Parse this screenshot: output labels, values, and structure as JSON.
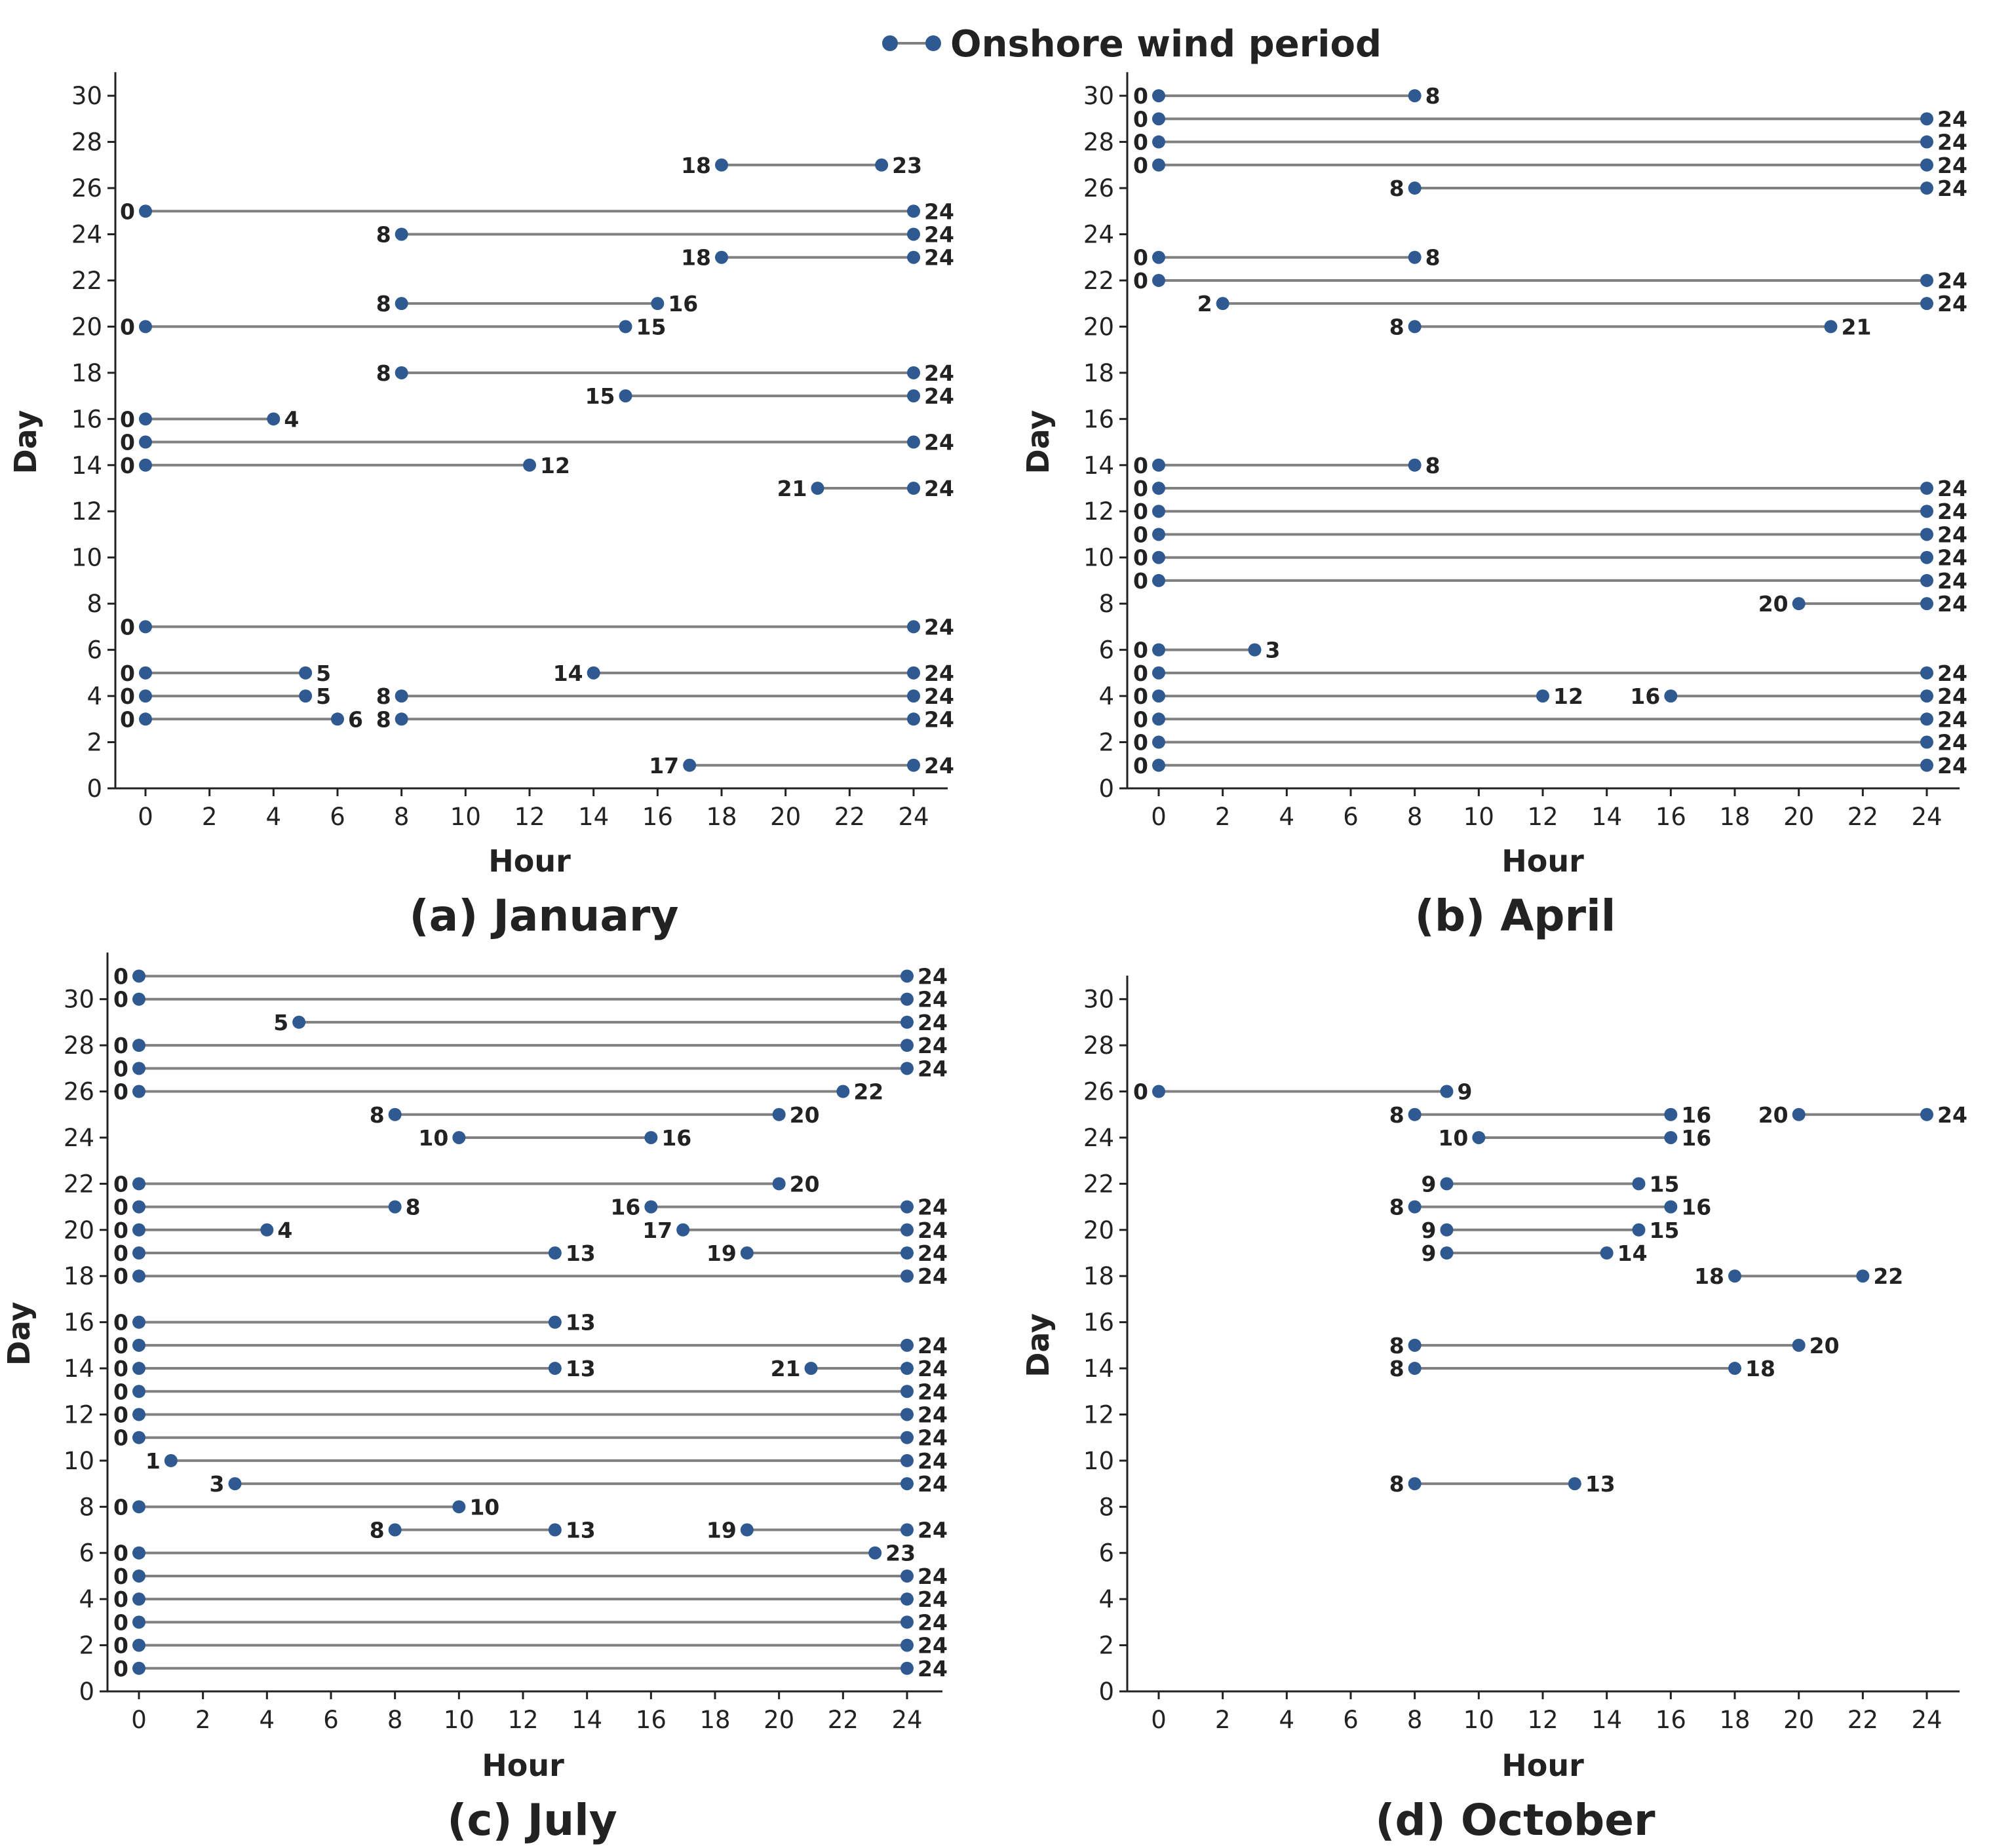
{
  "colors": {
    "marker": "#2E5A91",
    "line": "#808080",
    "axis": "#222222"
  },
  "legend": {
    "label": "Onshore wind period"
  },
  "chart_data": [
    {
      "type": "dumbbell",
      "title": "(a) January",
      "xlabel": "Hour",
      "ylabel": "Day",
      "xlim": [
        0,
        24
      ],
      "ylim": [
        0,
        30
      ],
      "xticks": [
        0,
        2,
        4,
        6,
        8,
        10,
        12,
        14,
        16,
        18,
        20,
        22,
        24
      ],
      "yticks": [
        0,
        2,
        4,
        6,
        8,
        10,
        12,
        14,
        16,
        18,
        20,
        22,
        24,
        26,
        28,
        30
      ],
      "periods": [
        {
          "day": 27,
          "start": 18,
          "end": 23
        },
        {
          "day": 25,
          "start": 0,
          "end": 24
        },
        {
          "day": 24,
          "start": 8,
          "end": 24
        },
        {
          "day": 23,
          "start": 18,
          "end": 24
        },
        {
          "day": 21,
          "start": 8,
          "end": 16
        },
        {
          "day": 20,
          "start": 0,
          "end": 15
        },
        {
          "day": 18,
          "start": 8,
          "end": 24
        },
        {
          "day": 17,
          "start": 15,
          "end": 24
        },
        {
          "day": 16,
          "start": 0,
          "end": 4
        },
        {
          "day": 15,
          "start": 0,
          "end": 24
        },
        {
          "day": 14,
          "start": 0,
          "end": 12
        },
        {
          "day": 13,
          "start": 21,
          "end": 24
        },
        {
          "day": 7,
          "start": 0,
          "end": 24
        },
        {
          "day": 5,
          "start": 0,
          "end": 5
        },
        {
          "day": 5,
          "start": 14,
          "end": 24
        },
        {
          "day": 4,
          "start": 0,
          "end": 5
        },
        {
          "day": 4,
          "start": 8,
          "end": 24
        },
        {
          "day": 3,
          "start": 0,
          "end": 6
        },
        {
          "day": 3,
          "start": 8,
          "end": 24
        },
        {
          "day": 1,
          "start": 17,
          "end": 24
        }
      ]
    },
    {
      "type": "dumbbell",
      "title": "(b) April",
      "xlabel": "Hour",
      "ylabel": "Day",
      "xlim": [
        0,
        24
      ],
      "ylim": [
        0,
        30
      ],
      "xticks": [
        0,
        2,
        4,
        6,
        8,
        10,
        12,
        14,
        16,
        18,
        20,
        22,
        24
      ],
      "yticks": [
        0,
        2,
        4,
        6,
        8,
        10,
        12,
        14,
        16,
        18,
        20,
        22,
        24,
        26,
        28,
        30
      ],
      "periods": [
        {
          "day": 30,
          "start": 0,
          "end": 8
        },
        {
          "day": 29,
          "start": 0,
          "end": 24
        },
        {
          "day": 28,
          "start": 0,
          "end": 24
        },
        {
          "day": 27,
          "start": 0,
          "end": 24
        },
        {
          "day": 26,
          "start": 8,
          "end": 24
        },
        {
          "day": 23,
          "start": 0,
          "end": 8
        },
        {
          "day": 22,
          "start": 0,
          "end": 24
        },
        {
          "day": 21,
          "start": 2,
          "end": 24
        },
        {
          "day": 20,
          "start": 8,
          "end": 21
        },
        {
          "day": 14,
          "start": 0,
          "end": 8
        },
        {
          "day": 13,
          "start": 0,
          "end": 24
        },
        {
          "day": 12,
          "start": 0,
          "end": 24
        },
        {
          "day": 11,
          "start": 0,
          "end": 24
        },
        {
          "day": 10,
          "start": 0,
          "end": 24
        },
        {
          "day": 9,
          "start": 0,
          "end": 24
        },
        {
          "day": 8,
          "start": 20,
          "end": 24
        },
        {
          "day": 6,
          "start": 0,
          "end": 3
        },
        {
          "day": 5,
          "start": 0,
          "end": 24
        },
        {
          "day": 4,
          "start": 0,
          "end": 12
        },
        {
          "day": 4,
          "start": 16,
          "end": 24
        },
        {
          "day": 3,
          "start": 0,
          "end": 24
        },
        {
          "day": 2,
          "start": 0,
          "end": 24
        },
        {
          "day": 1,
          "start": 0,
          "end": 24
        }
      ]
    },
    {
      "type": "dumbbell",
      "title": "(c) July",
      "xlabel": "Hour",
      "ylabel": "Day",
      "xlim": [
        0,
        24
      ],
      "ylim": [
        0,
        31
      ],
      "xticks": [
        0,
        2,
        4,
        6,
        8,
        10,
        12,
        14,
        16,
        18,
        20,
        22,
        24
      ],
      "yticks": [
        0,
        2,
        4,
        6,
        8,
        10,
        12,
        14,
        16,
        18,
        20,
        22,
        24,
        26,
        28,
        30
      ],
      "periods": [
        {
          "day": 31,
          "start": 0,
          "end": 24
        },
        {
          "day": 30,
          "start": 0,
          "end": 24
        },
        {
          "day": 29,
          "start": 5,
          "end": 24
        },
        {
          "day": 28,
          "start": 0,
          "end": 24
        },
        {
          "day": 27,
          "start": 0,
          "end": 24
        },
        {
          "day": 26,
          "start": 0,
          "end": 22
        },
        {
          "day": 25,
          "start": 8,
          "end": 20
        },
        {
          "day": 24,
          "start": 10,
          "end": 16
        },
        {
          "day": 22,
          "start": 0,
          "end": 20
        },
        {
          "day": 21,
          "start": 0,
          "end": 8
        },
        {
          "day": 21,
          "start": 16,
          "end": 24
        },
        {
          "day": 20,
          "start": 0,
          "end": 4
        },
        {
          "day": 20,
          "start": 17,
          "end": 24
        },
        {
          "day": 19,
          "start": 0,
          "end": 13
        },
        {
          "day": 19,
          "start": 19,
          "end": 24
        },
        {
          "day": 18,
          "start": 0,
          "end": 24
        },
        {
          "day": 16,
          "start": 0,
          "end": 13
        },
        {
          "day": 15,
          "start": 0,
          "end": 24
        },
        {
          "day": 14,
          "start": 0,
          "end": 13
        },
        {
          "day": 14,
          "start": 21,
          "end": 24
        },
        {
          "day": 13,
          "start": 0,
          "end": 24
        },
        {
          "day": 12,
          "start": 0,
          "end": 24
        },
        {
          "day": 11,
          "start": 0,
          "end": 24
        },
        {
          "day": 10,
          "start": 1,
          "end": 24
        },
        {
          "day": 9,
          "start": 3,
          "end": 24
        },
        {
          "day": 8,
          "start": 0,
          "end": 10
        },
        {
          "day": 7,
          "start": 8,
          "end": 13
        },
        {
          "day": 7,
          "start": 19,
          "end": 24
        },
        {
          "day": 6,
          "start": 0,
          "end": 23
        },
        {
          "day": 5,
          "start": 0,
          "end": 24
        },
        {
          "day": 4,
          "start": 0,
          "end": 24
        },
        {
          "day": 3,
          "start": 0,
          "end": 24
        },
        {
          "day": 2,
          "start": 0,
          "end": 24
        },
        {
          "day": 1,
          "start": 0,
          "end": 24
        }
      ]
    },
    {
      "type": "dumbbell",
      "title": "(d) October",
      "xlabel": "Hour",
      "ylabel": "Day",
      "xlim": [
        0,
        24
      ],
      "ylim": [
        0,
        30
      ],
      "xticks": [
        0,
        2,
        4,
        6,
        8,
        10,
        12,
        14,
        16,
        18,
        20,
        22,
        24
      ],
      "yticks": [
        0,
        2,
        4,
        6,
        8,
        10,
        12,
        14,
        16,
        18,
        20,
        22,
        24,
        26,
        28,
        30
      ],
      "periods": [
        {
          "day": 26,
          "start": 0,
          "end": 9
        },
        {
          "day": 25,
          "start": 8,
          "end": 16
        },
        {
          "day": 25,
          "start": 20,
          "end": 24
        },
        {
          "day": 24,
          "start": 10,
          "end": 16
        },
        {
          "day": 22,
          "start": 9,
          "end": 15
        },
        {
          "day": 21,
          "start": 8,
          "end": 16
        },
        {
          "day": 20,
          "start": 9,
          "end": 15
        },
        {
          "day": 19,
          "start": 9,
          "end": 14
        },
        {
          "day": 18,
          "start": 18,
          "end": 22
        },
        {
          "day": 15,
          "start": 8,
          "end": 20
        },
        {
          "day": 14,
          "start": 8,
          "end": 18
        },
        {
          "day": 9,
          "start": 8,
          "end": 13
        }
      ]
    }
  ]
}
